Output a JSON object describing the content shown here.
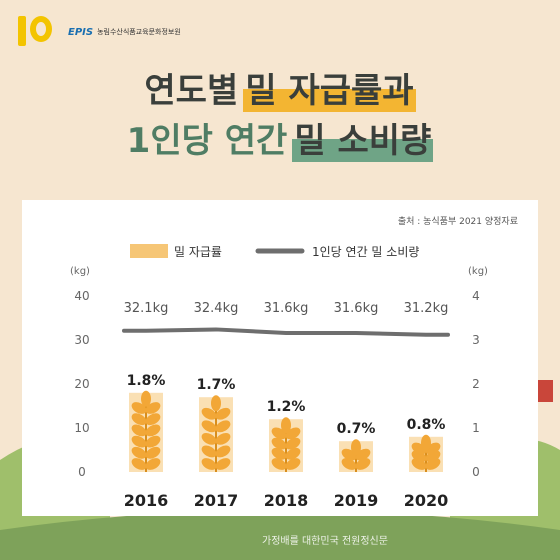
{
  "logo": {
    "brand": "EPIS",
    "org": "농림수산식품교육문화정보원"
  },
  "title": {
    "line1_a": "연도별",
    "line1_b": "밀 자급률과",
    "line2_a": "1인당 연간",
    "line2_b": "밀 소비량"
  },
  "source": "출처 : 농식품부 2021 양정자료",
  "watermark": "가정배를 대한민국 전원정신문",
  "colors": {
    "bar": "#f6c676",
    "wheat": "#f2a737",
    "line": "#6e6e6e",
    "highlight_gold": "#f3b532",
    "highlight_green": "#6fa486"
  },
  "chart_data": {
    "type": "bar",
    "categories": [
      "2016",
      "2017",
      "2018",
      "2019",
      "2020"
    ],
    "series": [
      {
        "name": "밀 자급률",
        "values": [
          1.8,
          1.7,
          1.2,
          0.7,
          0.8
        ],
        "labels": [
          "1.8%",
          "1.7%",
          "1.2%",
          "0.7%",
          "0.8%"
        ],
        "axis": "right"
      },
      {
        "name": "1인당 연간 밀 소비량",
        "values": [
          32.1,
          32.4,
          31.6,
          31.6,
          31.2
        ],
        "labels": [
          "32.1kg",
          "32.4kg",
          "31.6kg",
          "31.6kg",
          "31.2kg"
        ],
        "axis": "left"
      }
    ],
    "left_axis": {
      "unit": "(kg)",
      "ticks": [
        "40",
        "30",
        "20",
        "10",
        "0"
      ],
      "range": [
        0,
        40
      ]
    },
    "right_axis": {
      "unit": "(kg)",
      "ticks": [
        "4",
        "3",
        "2",
        "1",
        "0"
      ],
      "range": [
        0,
        4
      ]
    },
    "legend_position": "top-center",
    "grid": false
  }
}
